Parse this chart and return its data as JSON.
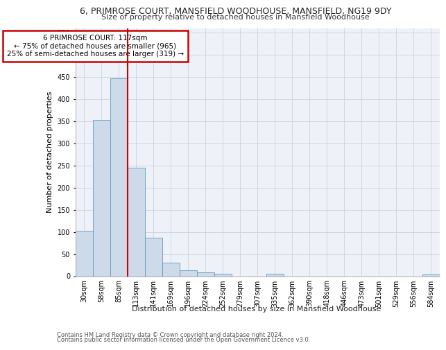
{
  "title1": "6, PRIMROSE COURT, MANSFIELD WOODHOUSE, MANSFIELD, NG19 9DY",
  "title2": "Size of property relative to detached houses in Mansfield Woodhouse",
  "xlabel": "Distribution of detached houses by size in Mansfield Woodhouse",
  "ylabel": "Number of detached properties",
  "footer1": "Contains HM Land Registry data © Crown copyright and database right 2024.",
  "footer2": "Contains public sector information licensed under the Open Government Licence v3.0.",
  "annotation_line1": "6 PRIMROSE COURT: 117sqm",
  "annotation_line2": "← 75% of detached houses are smaller (965)",
  "annotation_line3": "25% of semi-detached houses are larger (319) →",
  "bar_color": "#ccdaea",
  "bar_edge_color": "#6699bb",
  "vline_color": "#cc0000",
  "categories": [
    "30sqm",
    "58sqm",
    "85sqm",
    "113sqm",
    "141sqm",
    "169sqm",
    "196sqm",
    "224sqm",
    "252sqm",
    "279sqm",
    "307sqm",
    "335sqm",
    "362sqm",
    "390sqm",
    "418sqm",
    "446sqm",
    "473sqm",
    "501sqm",
    "529sqm",
    "556sqm",
    "584sqm"
  ],
  "values": [
    103,
    353,
    447,
    245,
    87,
    30,
    14,
    8,
    5,
    0,
    0,
    5,
    0,
    0,
    0,
    0,
    0,
    0,
    0,
    0,
    4
  ],
  "ylim": [
    0,
    560
  ],
  "yticks": [
    0,
    50,
    100,
    150,
    200,
    250,
    300,
    350,
    400,
    450,
    500,
    550
  ],
  "vline_x_index": 2.5,
  "grid_color": "#c8d4e0",
  "bg_color": "#eef2f8",
  "annotation_box_color": "#ffffff",
  "annotation_border_color": "#cc0000",
  "title1_fontsize": 9,
  "title2_fontsize": 8,
  "ylabel_fontsize": 8,
  "xlabel_fontsize": 8,
  "footer_fontsize": 6,
  "tick_fontsize": 7,
  "ann_fontsize": 7.5
}
